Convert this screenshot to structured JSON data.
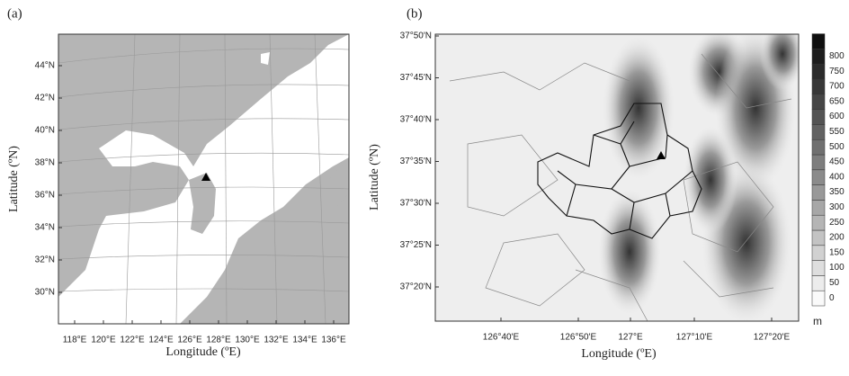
{
  "panels": [
    {
      "label": "(a)",
      "y_axis_label": "Latitude (ºN)",
      "x_axis_label": "Longitude (ºE)",
      "yticks": [
        "44°N",
        "42°N",
        "40°N",
        "38°N",
        "36°N",
        "34°N",
        "32°N",
        "30°N"
      ],
      "xticks": [
        "118°E",
        "120°E",
        "122°E",
        "124°E",
        "126°E",
        "128°E",
        "130°E",
        "132°E",
        "134°E",
        "136°E"
      ]
    },
    {
      "label": "(b)",
      "y_axis_label": "Latitude (ºN)",
      "x_axis_label": "Longitude (ºE)",
      "yticks": [
        "37°50'N",
        "37°45'N",
        "37°40'N",
        "37°35'N",
        "37°30'N",
        "37°25'N",
        "37°20'N"
      ],
      "xticks": [
        "126°40'E",
        "126°50'E",
        "127°E",
        "127°10'E",
        "127°20'E"
      ]
    }
  ],
  "colorbar": {
    "ticks": [
      "0",
      "50",
      "100",
      "150",
      "200",
      "250",
      "300",
      "350",
      "400",
      "450",
      "500",
      "550",
      "600",
      "650",
      "700",
      "750",
      "800"
    ],
    "unit": "m"
  }
}
